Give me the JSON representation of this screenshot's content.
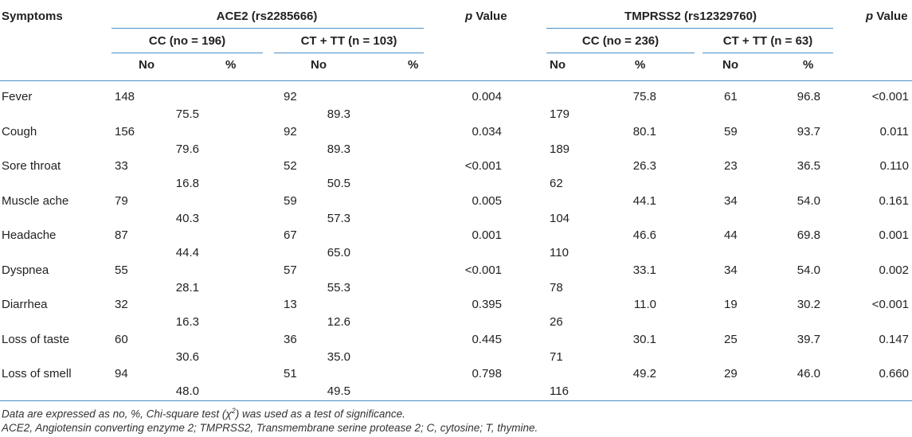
{
  "headers": {
    "symptoms": "Symptoms",
    "ace2": "ACE2 (rs2285666)",
    "tmprss2": "TMPRSS2 (rs12329760)",
    "p_italic": "p",
    "p_rest": " Value",
    "ace2_cc": "CC (no = 196)",
    "ace2_ct": "CT + TT (n = 103)",
    "tm_cc": "CC (no = 236)",
    "tm_ct": "CT + TT (n = 63)",
    "no": "No",
    "pct": "%"
  },
  "rows": [
    {
      "symptom": "Fever",
      "ace_cc_no": "148",
      "ace_cc_pct": "75.5",
      "ace_ct_no": "92",
      "ace_ct_pct": "89.3",
      "p1": "0.004",
      "tm_cc_no": "179",
      "tm_cc_pct": "75.8",
      "tm_ct_no": "61",
      "tm_ct_pct": "96.8",
      "p2": "<0.001"
    },
    {
      "symptom": "Cough",
      "ace_cc_no": "156",
      "ace_cc_pct": "79.6",
      "ace_ct_no": "92",
      "ace_ct_pct": "89.3",
      "p1": "0.034",
      "tm_cc_no": "189",
      "tm_cc_pct": "80.1",
      "tm_ct_no": "59",
      "tm_ct_pct": "93.7",
      "p2": "0.011"
    },
    {
      "symptom": "Sore throat",
      "ace_cc_no": "33",
      "ace_cc_pct": "16.8",
      "ace_ct_no": "52",
      "ace_ct_pct": "50.5",
      "p1": "<0.001",
      "tm_cc_no": "62",
      "tm_cc_pct": "26.3",
      "tm_ct_no": "23",
      "tm_ct_pct": "36.5",
      "p2": "0.110"
    },
    {
      "symptom": "Muscle ache",
      "ace_cc_no": "79",
      "ace_cc_pct": "40.3",
      "ace_ct_no": "59",
      "ace_ct_pct": "57.3",
      "p1": "0.005",
      "tm_cc_no": "104",
      "tm_cc_pct": "44.1",
      "tm_ct_no": "34",
      "tm_ct_pct": "54.0",
      "p2": "0.161"
    },
    {
      "symptom": "Headache",
      "ace_cc_no": "87",
      "ace_cc_pct": "44.4",
      "ace_ct_no": "67",
      "ace_ct_pct": "65.0",
      "p1": "0.001",
      "tm_cc_no": "110",
      "tm_cc_pct": "46.6",
      "tm_ct_no": "44",
      "tm_ct_pct": "69.8",
      "p2": "0.001"
    },
    {
      "symptom": "Dyspnea",
      "ace_cc_no": "55",
      "ace_cc_pct": "28.1",
      "ace_ct_no": "57",
      "ace_ct_pct": "55.3",
      "p1": "<0.001",
      "tm_cc_no": "78",
      "tm_cc_pct": "33.1",
      "tm_ct_no": "34",
      "tm_ct_pct": "54.0",
      "p2": "0.002"
    },
    {
      "symptom": "Diarrhea",
      "ace_cc_no": "32",
      "ace_cc_pct": "16.3",
      "ace_ct_no": "13",
      "ace_ct_pct": "12.6",
      "p1": "0.395",
      "tm_cc_no": "26",
      "tm_cc_pct": "11.0",
      "tm_ct_no": "19",
      "tm_ct_pct": "30.2",
      "p2": "<0.001"
    },
    {
      "symptom": "Loss of taste",
      "ace_cc_no": "60",
      "ace_cc_pct": "30.6",
      "ace_ct_no": "36",
      "ace_ct_pct": "35.0",
      "p1": "0.445",
      "tm_cc_no": "71",
      "tm_cc_pct": "30.1",
      "tm_ct_no": "25",
      "tm_ct_pct": "39.7",
      "p2": "0.147"
    },
    {
      "symptom": "Loss of smell",
      "ace_cc_no": "94",
      "ace_cc_pct": "48.0",
      "ace_ct_no": "51",
      "ace_ct_pct": "49.5",
      "p1": "0.798",
      "tm_cc_no": "116",
      "tm_cc_pct": "49.2",
      "tm_ct_no": "29",
      "tm_ct_pct": "46.0",
      "p2": "0.660"
    }
  ],
  "notes": {
    "line1_a": "Data are expressed as no, %, Chi-square test (",
    "line1_chi": "χ",
    "line1_sup": "2",
    "line1_b": ") was used as a test of significance.",
    "line2": "ACE2, Angiotensin converting enzyme 2; TMPRSS2, Transmembrane serine protease 2; C, cytosine; T, thymine."
  },
  "colors": {
    "rule": "#4a90c8",
    "text": "#222222"
  }
}
